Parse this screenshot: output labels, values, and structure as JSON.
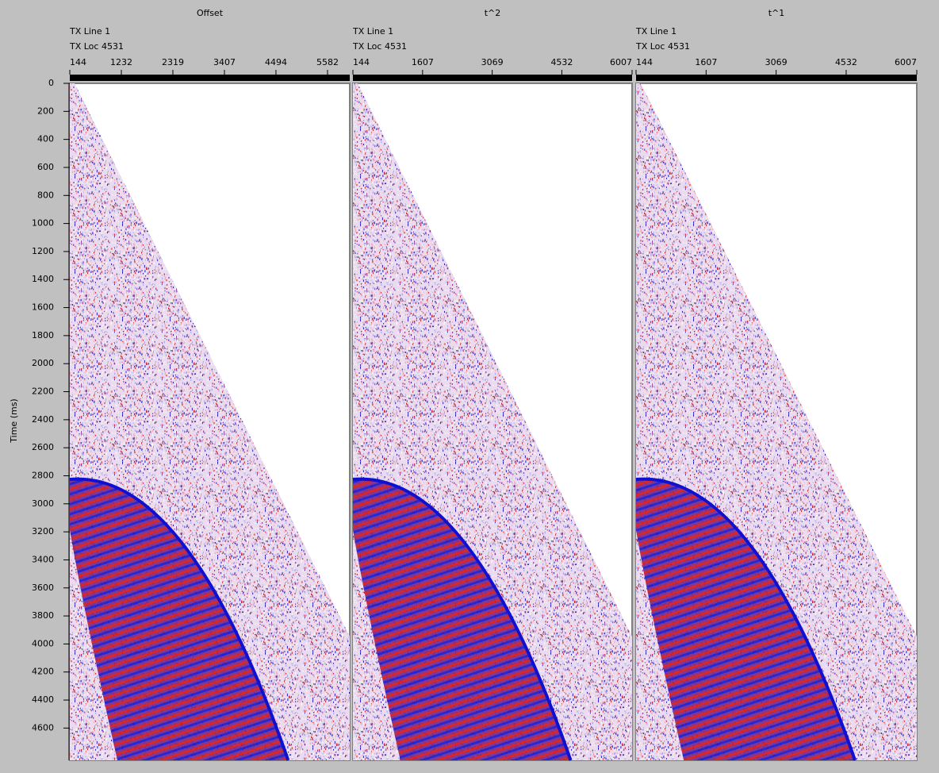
{
  "chart_data": [
    {
      "type": "seismic",
      "title": "Offset",
      "header_lines": [
        "TX Line 1",
        "TX Loc 4531"
      ],
      "xticks": [
        144,
        1232,
        2319,
        3407,
        4494,
        5582
      ],
      "xlim": [
        144,
        6051
      ],
      "ylabel": "Time (ms)",
      "ylim": [
        0,
        4830
      ],
      "yticks": [
        0,
        200,
        400,
        600,
        800,
        1000,
        1200,
        1400,
        1600,
        1800,
        2000,
        2200,
        2400,
        2600,
        2800,
        3000,
        3200,
        3400,
        3600,
        3800,
        4000,
        4200,
        4400,
        4600
      ]
    },
    {
      "type": "seismic",
      "title": "t^2",
      "header_lines": [
        "TX Line 1",
        "TX Loc 4531"
      ],
      "xticks": [
        144,
        1607,
        3069,
        4532,
        6007
      ],
      "xlim": [
        144,
        6007
      ],
      "ylim": [
        0,
        4830
      ]
    },
    {
      "type": "seismic",
      "title": "t^1",
      "header_lines": [
        "TX Line 1",
        "TX Loc 4531"
      ],
      "xticks": [
        144,
        1607,
        3069,
        4532,
        6007
      ],
      "xlim": [
        144,
        6007
      ],
      "ylim": [
        0,
        4830
      ]
    }
  ]
}
